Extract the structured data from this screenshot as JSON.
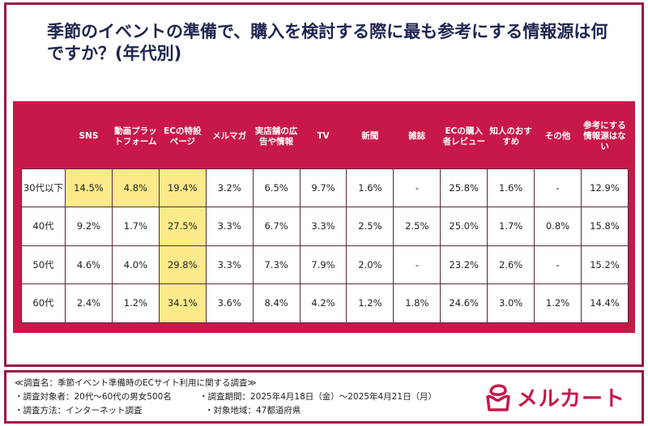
{
  "title": "季節のイベントの準備で、購入を検討する際に最も参考にする情報源は何ですか？(年代別)",
  "colors": {
    "accent": "#c8184a",
    "highlight": "#fbe98a",
    "frame": "#9e1545",
    "title": "#1f2550"
  },
  "table": {
    "headers": [
      "SNS",
      "動画プラットフォーム",
      "ECの特設ページ",
      "メルマガ",
      "実店舗の広告や情報",
      "TV",
      "新聞",
      "雑誌",
      "ECの購入者レビュー",
      "知人のおすすめ",
      "その他",
      "参考にする情報源はない"
    ],
    "rows": [
      {
        "label": "30代以下",
        "values": [
          "14.5%",
          "4.8%",
          "19.4%",
          "3.2%",
          "6.5%",
          "9.7%",
          "1.6%",
          "-",
          "25.8%",
          "1.6%",
          "-",
          "12.9%"
        ],
        "highlighted": [
          0,
          1,
          2
        ]
      },
      {
        "label": "40代",
        "values": [
          "9.2%",
          "1.7%",
          "27.5%",
          "3.3%",
          "6.7%",
          "3.3%",
          "2.5%",
          "2.5%",
          "25.0%",
          "1.7%",
          "0.8%",
          "15.8%"
        ],
        "highlighted": [
          2
        ]
      },
      {
        "label": "50代",
        "values": [
          "4.6%",
          "4.0%",
          "29.8%",
          "3.3%",
          "7.3%",
          "7.9%",
          "2.0%",
          "-",
          "23.2%",
          "2.6%",
          "-",
          "15.2%"
        ],
        "highlighted": [
          2
        ]
      },
      {
        "label": "60代",
        "values": [
          "2.4%",
          "1.2%",
          "34.1%",
          "3.6%",
          "8.4%",
          "4.2%",
          "1.2%",
          "1.8%",
          "24.6%",
          "3.0%",
          "1.2%",
          "14.4%"
        ],
        "highlighted": [
          2
        ]
      }
    ]
  },
  "footer": {
    "survey_name": "≪調査名：季節イベント準備時のECサイト利用に関する調査≫",
    "target": "・調査対象者：20代～60代の男女500名",
    "period": "・調査期間：2025年4月18日（金）～2025年4月21日（月）",
    "method": "・調査方法：インターネット調査",
    "region": "・対象地域：47都道府県",
    "logo": "メルカート"
  }
}
